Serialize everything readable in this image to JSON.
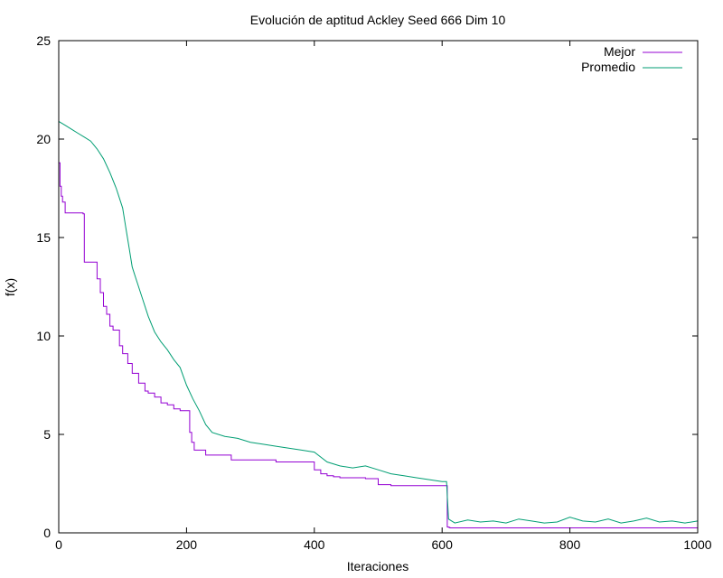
{
  "chart_data": {
    "type": "line",
    "title": "Evolución de aptitud Ackley Seed 666 Dim 10",
    "xlabel": "Iteraciones",
    "ylabel": "f(x)",
    "xlim": [
      0,
      1000
    ],
    "ylim": [
      0,
      25
    ],
    "x_ticks": [
      0,
      200,
      400,
      600,
      800,
      1000
    ],
    "y_ticks": [
      0,
      5,
      10,
      15,
      20,
      25
    ],
    "grid": false,
    "legend_position": "top-right",
    "series": [
      {
        "name": "Mejor",
        "color": "#9400d3",
        "step": true,
        "x": [
          0,
          2,
          4,
          6,
          10,
          38,
          40,
          60,
          65,
          70,
          75,
          80,
          85,
          95,
          100,
          108,
          115,
          125,
          135,
          140,
          150,
          160,
          170,
          180,
          190,
          205,
          208,
          212,
          230,
          270,
          340,
          400,
          410,
          420,
          430,
          440,
          480,
          500,
          520,
          550,
          608,
          610,
          612,
          620,
          650,
          700,
          750,
          800,
          850,
          900,
          950,
          1000
        ],
        "y": [
          18.8,
          17.6,
          17.1,
          16.8,
          16.25,
          16.2,
          13.75,
          12.9,
          12.2,
          11.5,
          11.1,
          10.5,
          10.3,
          9.5,
          9.1,
          8.6,
          8.1,
          7.6,
          7.2,
          7.1,
          6.9,
          6.6,
          6.5,
          6.3,
          6.2,
          5.1,
          4.6,
          4.2,
          3.95,
          3.7,
          3.6,
          3.2,
          3.0,
          2.9,
          2.85,
          2.8,
          2.75,
          2.45,
          2.4,
          2.4,
          0.3,
          0.28,
          0.25,
          0.25,
          0.25,
          0.25,
          0.25,
          0.25,
          0.25,
          0.25,
          0.25,
          0.25
        ]
      },
      {
        "name": "Promedio",
        "color": "#009e73",
        "x": [
          0,
          10,
          20,
          30,
          40,
          50,
          60,
          70,
          80,
          90,
          100,
          105,
          110,
          115,
          120,
          130,
          140,
          150,
          160,
          170,
          180,
          190,
          200,
          210,
          220,
          230,
          240,
          260,
          280,
          300,
          320,
          340,
          360,
          380,
          400,
          420,
          440,
          460,
          480,
          500,
          520,
          540,
          560,
          580,
          600,
          607,
          610,
          615,
          620,
          640,
          660,
          680,
          700,
          720,
          740,
          760,
          780,
          800,
          820,
          840,
          860,
          880,
          900,
          920,
          940,
          960,
          980,
          1000
        ],
        "y": [
          20.9,
          20.7,
          20.5,
          20.3,
          20.1,
          19.9,
          19.5,
          19.0,
          18.3,
          17.5,
          16.5,
          15.5,
          14.5,
          13.5,
          13.0,
          12.0,
          11.0,
          10.2,
          9.7,
          9.3,
          8.8,
          8.4,
          7.5,
          6.8,
          6.2,
          5.5,
          5.1,
          4.9,
          4.8,
          4.6,
          4.5,
          4.4,
          4.3,
          4.2,
          4.1,
          3.6,
          3.4,
          3.3,
          3.4,
          3.2,
          3.0,
          2.9,
          2.8,
          2.7,
          2.6,
          2.6,
          0.7,
          0.6,
          0.5,
          0.65,
          0.55,
          0.6,
          0.5,
          0.7,
          0.6,
          0.5,
          0.55,
          0.8,
          0.6,
          0.55,
          0.7,
          0.5,
          0.6,
          0.75,
          0.55,
          0.6,
          0.5,
          0.6
        ]
      }
    ]
  }
}
